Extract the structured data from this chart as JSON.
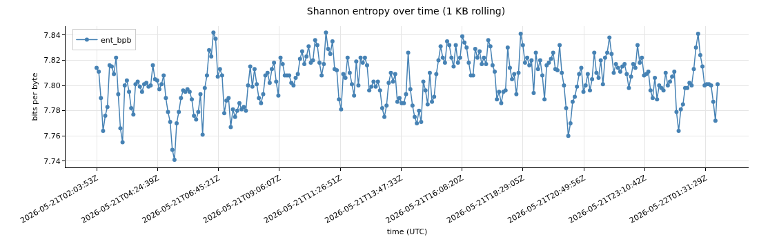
{
  "chart_data": {
    "type": "line",
    "title": "Shannon entropy over time (1 KB rolling)",
    "xlabel": "time (UTC)",
    "ylabel": "bits per byte",
    "x": [
      "2026-05-21T02:03:53",
      "2026-05-21T02:08:53",
      "2026-05-21T02:13:53",
      "2026-05-21T02:18:53",
      "2026-05-21T02:23:53",
      "2026-05-21T02:28:53",
      "2026-05-21T02:33:53",
      "2026-05-21T02:38:53",
      "2026-05-21T02:43:53",
      "2026-05-21T02:48:53",
      "2026-05-21T02:53:53",
      "2026-05-21T02:58:53",
      "2026-05-21T03:03:53",
      "2026-05-21T03:08:53",
      "2026-05-21T03:13:53",
      "2026-05-21T03:18:53",
      "2026-05-21T03:23:53",
      "2026-05-21T03:28:53",
      "2026-05-21T03:33:53",
      "2026-05-21T03:38:53",
      "2026-05-21T03:43:53",
      "2026-05-21T03:48:53",
      "2026-05-21T03:53:53",
      "2026-05-21T03:58:53",
      "2026-05-21T04:03:53",
      "2026-05-21T04:08:53",
      "2026-05-21T04:13:53",
      "2026-05-21T04:18:53",
      "2026-05-21T04:23:53",
      "2026-05-21T04:28:53",
      "2026-05-21T04:33:53",
      "2026-05-21T04:38:53",
      "2026-05-21T04:43:53",
      "2026-05-21T04:48:53",
      "2026-05-21T04:53:53",
      "2026-05-21T04:58:53",
      "2026-05-21T05:03:53",
      "2026-05-21T05:08:53",
      "2026-05-21T05:13:53",
      "2026-05-21T05:18:53",
      "2026-05-21T05:23:53",
      "2026-05-21T05:28:53",
      "2026-05-21T05:33:53",
      "2026-05-21T05:38:53",
      "2026-05-21T05:43:53",
      "2026-05-21T05:48:53",
      "2026-05-21T05:53:53",
      "2026-05-21T05:58:53",
      "2026-05-21T06:03:53",
      "2026-05-21T06:08:53",
      "2026-05-21T06:13:53",
      "2026-05-21T06:18:53",
      "2026-05-21T06:23:53",
      "2026-05-21T06:28:53",
      "2026-05-21T06:33:53",
      "2026-05-21T06:38:53",
      "2026-05-21T06:43:53",
      "2026-05-21T06:48:53",
      "2026-05-21T06:53:53",
      "2026-05-21T06:58:53",
      "2026-05-21T07:03:53",
      "2026-05-21T07:08:53",
      "2026-05-21T07:13:53",
      "2026-05-21T07:18:53",
      "2026-05-21T07:23:53",
      "2026-05-21T07:28:53",
      "2026-05-21T07:33:53",
      "2026-05-21T07:38:53",
      "2026-05-21T07:43:53",
      "2026-05-21T07:48:53",
      "2026-05-21T07:53:53",
      "2026-05-21T07:58:53",
      "2026-05-21T08:03:53",
      "2026-05-21T08:08:53",
      "2026-05-21T08:13:53",
      "2026-05-21T08:18:53",
      "2026-05-21T08:23:53",
      "2026-05-21T08:28:53",
      "2026-05-21T08:33:53",
      "2026-05-21T08:38:53",
      "2026-05-21T08:43:53",
      "2026-05-21T08:48:53",
      "2026-05-21T08:53:53",
      "2026-05-21T08:58:53",
      "2026-05-21T09:03:53",
      "2026-05-21T09:08:53",
      "2026-05-21T09:13:53",
      "2026-05-21T09:18:53",
      "2026-05-21T09:23:53",
      "2026-05-21T09:28:53",
      "2026-05-21T09:33:53",
      "2026-05-21T09:38:53",
      "2026-05-21T09:43:53",
      "2026-05-21T09:48:53",
      "2026-05-21T09:53:53",
      "2026-05-21T09:58:53",
      "2026-05-21T10:03:53",
      "2026-05-21T10:08:53",
      "2026-05-21T10:13:53",
      "2026-05-21T10:18:53",
      "2026-05-21T10:23:53",
      "2026-05-21T10:28:53",
      "2026-05-21T10:33:53",
      "2026-05-21T10:38:53",
      "2026-05-21T10:43:53",
      "2026-05-21T10:48:53",
      "2026-05-21T10:53:53",
      "2026-05-21T10:58:53",
      "2026-05-21T11:03:53",
      "2026-05-21T11:08:53",
      "2026-05-21T11:13:53",
      "2026-05-21T11:18:53",
      "2026-05-21T11:23:53",
      "2026-05-21T11:28:53",
      "2026-05-21T11:33:53",
      "2026-05-21T11:38:53",
      "2026-05-21T11:43:53",
      "2026-05-21T11:48:53",
      "2026-05-21T11:53:53",
      "2026-05-21T11:58:53",
      "2026-05-21T12:03:53",
      "2026-05-21T12:08:53",
      "2026-05-21T12:13:53",
      "2026-05-21T12:18:53",
      "2026-05-21T12:23:53",
      "2026-05-21T12:28:53",
      "2026-05-21T12:33:53",
      "2026-05-21T12:38:53",
      "2026-05-21T12:43:53",
      "2026-05-21T12:48:53",
      "2026-05-21T12:53:53",
      "2026-05-21T12:58:53",
      "2026-05-21T13:03:53",
      "2026-05-21T13:08:53",
      "2026-05-21T13:13:53",
      "2026-05-21T13:18:53",
      "2026-05-21T13:23:53",
      "2026-05-21T13:28:53",
      "2026-05-21T13:33:53",
      "2026-05-21T13:38:53",
      "2026-05-21T13:43:53",
      "2026-05-21T13:48:53",
      "2026-05-21T13:53:53",
      "2026-05-21T13:58:53",
      "2026-05-21T14:03:53",
      "2026-05-21T14:08:53",
      "2026-05-21T14:13:53",
      "2026-05-21T14:18:53",
      "2026-05-21T14:23:53",
      "2026-05-21T14:28:53",
      "2026-05-21T14:33:53",
      "2026-05-21T14:38:53",
      "2026-05-21T14:43:53",
      "2026-05-21T14:48:53",
      "2026-05-21T14:53:53",
      "2026-05-21T14:58:53",
      "2026-05-21T15:03:53",
      "2026-05-21T15:08:53",
      "2026-05-21T15:13:53",
      "2026-05-21T15:18:53",
      "2026-05-21T15:23:53",
      "2026-05-21T15:28:53",
      "2026-05-21T15:33:53",
      "2026-05-21T15:38:53",
      "2026-05-21T15:43:53",
      "2026-05-21T15:48:53",
      "2026-05-21T15:53:53",
      "2026-05-21T15:58:53",
      "2026-05-21T16:03:53",
      "2026-05-21T16:08:53",
      "2026-05-21T16:13:53",
      "2026-05-21T16:18:53",
      "2026-05-21T16:23:53",
      "2026-05-21T16:28:53",
      "2026-05-21T16:33:53",
      "2026-05-21T16:38:53",
      "2026-05-21T16:43:53",
      "2026-05-21T16:48:53",
      "2026-05-21T16:53:53",
      "2026-05-21T16:58:53",
      "2026-05-21T17:03:53",
      "2026-05-21T17:08:53",
      "2026-05-21T17:13:53",
      "2026-05-21T17:18:53",
      "2026-05-21T17:23:53",
      "2026-05-21T17:28:53",
      "2026-05-21T17:33:53",
      "2026-05-21T17:38:53",
      "2026-05-21T17:43:53",
      "2026-05-21T17:48:53",
      "2026-05-21T17:53:53",
      "2026-05-21T17:58:53",
      "2026-05-21T18:03:53",
      "2026-05-21T18:08:53",
      "2026-05-21T18:13:53",
      "2026-05-21T18:18:53",
      "2026-05-21T18:23:53",
      "2026-05-21T18:28:53",
      "2026-05-21T18:33:53",
      "2026-05-21T18:38:53",
      "2026-05-21T18:43:53",
      "2026-05-21T18:48:53",
      "2026-05-21T18:53:53",
      "2026-05-21T18:58:53",
      "2026-05-21T19:03:53",
      "2026-05-21T19:08:53",
      "2026-05-21T19:13:53",
      "2026-05-21T19:18:53",
      "2026-05-21T19:23:53",
      "2026-05-21T19:28:53",
      "2026-05-21T19:33:53",
      "2026-05-21T19:38:53",
      "2026-05-21T19:43:53",
      "2026-05-21T19:48:53",
      "2026-05-21T19:53:53",
      "2026-05-21T19:58:53",
      "2026-05-21T20:03:53",
      "2026-05-21T20:08:53",
      "2026-05-21T20:13:53",
      "2026-05-21T20:18:53",
      "2026-05-21T20:23:53",
      "2026-05-21T20:28:53",
      "2026-05-21T20:33:53",
      "2026-05-21T20:38:53",
      "2026-05-21T20:43:53",
      "2026-05-21T20:48:53",
      "2026-05-21T20:53:53",
      "2026-05-21T20:58:53",
      "2026-05-21T21:03:53",
      "2026-05-21T21:08:53",
      "2026-05-21T21:13:53",
      "2026-05-21T21:18:53",
      "2026-05-21T21:23:53",
      "2026-05-21T21:28:53",
      "2026-05-21T21:33:53",
      "2026-05-21T21:38:53",
      "2026-05-21T21:43:53",
      "2026-05-21T21:48:53",
      "2026-05-21T21:53:53",
      "2026-05-21T21:58:53",
      "2026-05-21T22:03:53",
      "2026-05-21T22:08:53",
      "2026-05-21T22:13:53",
      "2026-05-21T22:18:53",
      "2026-05-21T22:23:53",
      "2026-05-21T22:28:53",
      "2026-05-21T22:33:53",
      "2026-05-21T22:38:53",
      "2026-05-21T22:43:53",
      "2026-05-21T22:48:53",
      "2026-05-21T22:53:53",
      "2026-05-21T22:58:53",
      "2026-05-21T23:03:53",
      "2026-05-21T23:08:53",
      "2026-05-21T23:13:53",
      "2026-05-21T23:18:53",
      "2026-05-21T23:23:53",
      "2026-05-21T23:28:53",
      "2026-05-21T23:33:53",
      "2026-05-21T23:38:53",
      "2026-05-21T23:43:53",
      "2026-05-21T23:48:53",
      "2026-05-21T23:53:53",
      "2026-05-21T23:58:53",
      "2026-05-22T00:03:53",
      "2026-05-22T00:08:53",
      "2026-05-22T00:13:53",
      "2026-05-22T00:18:53",
      "2026-05-22T00:23:53",
      "2026-05-22T00:28:53",
      "2026-05-22T00:33:53",
      "2026-05-22T00:38:53",
      "2026-05-22T00:43:53",
      "2026-05-22T00:48:53",
      "2026-05-22T00:53:53",
      "2026-05-22T00:58:53",
      "2026-05-22T01:03:53",
      "2026-05-22T01:08:53",
      "2026-05-22T01:13:53",
      "2026-05-22T01:18:53",
      "2026-05-22T01:23:53",
      "2026-05-22T01:28:53",
      "2026-05-22T01:33:53",
      "2026-05-22T01:38:53",
      "2026-05-22T01:43:53",
      "2026-05-22T01:48:53",
      "2026-05-22T01:53:53",
      "2026-05-22T01:58:53"
    ],
    "series": [
      {
        "name": "ent_bpb",
        "color": "#4682b4",
        "values": [
          7.814,
          7.811,
          7.79,
          7.764,
          7.776,
          7.783,
          7.816,
          7.815,
          7.809,
          7.822,
          7.793,
          7.766,
          7.755,
          7.8,
          7.804,
          7.795,
          7.782,
          7.777,
          7.801,
          7.803,
          7.799,
          7.795,
          7.801,
          7.802,
          7.799,
          7.8,
          7.816,
          7.805,
          7.804,
          7.797,
          7.801,
          7.808,
          7.79,
          7.779,
          7.771,
          7.749,
          7.741,
          7.77,
          7.779,
          7.79,
          7.796,
          7.795,
          7.797,
          7.795,
          7.789,
          7.776,
          7.773,
          7.779,
          7.793,
          7.761,
          7.798,
          7.808,
          7.828,
          7.823,
          7.842,
          7.837,
          7.807,
          7.813,
          7.808,
          7.778,
          7.788,
          7.79,
          7.767,
          7.781,
          7.775,
          7.78,
          7.786,
          7.781,
          7.783,
          7.78,
          7.8,
          7.815,
          7.799,
          7.813,
          7.801,
          7.79,
          7.786,
          7.793,
          7.808,
          7.81,
          7.802,
          7.813,
          7.818,
          7.803,
          7.792,
          7.822,
          7.817,
          7.808,
          7.808,
          7.808,
          7.802,
          7.8,
          7.806,
          7.809,
          7.821,
          7.827,
          7.817,
          7.823,
          7.831,
          7.818,
          7.82,
          7.836,
          7.832,
          7.818,
          7.808,
          7.817,
          7.842,
          7.829,
          7.825,
          7.835,
          7.813,
          7.812,
          7.789,
          7.781,
          7.809,
          7.806,
          7.822,
          7.81,
          7.801,
          7.792,
          7.819,
          7.8,
          7.822,
          7.818,
          7.822,
          7.816,
          7.796,
          7.799,
          7.803,
          7.799,
          7.803,
          7.796,
          7.782,
          7.775,
          7.784,
          7.802,
          7.81,
          7.803,
          7.809,
          7.787,
          7.79,
          7.786,
          7.786,
          7.793,
          7.826,
          7.797,
          7.784,
          7.775,
          7.77,
          7.78,
          7.771,
          7.803,
          7.796,
          7.785,
          7.81,
          7.787,
          7.791,
          7.809,
          7.82,
          7.831,
          7.822,
          7.818,
          7.835,
          7.832,
          7.822,
          7.815,
          7.832,
          7.818,
          7.822,
          7.839,
          7.834,
          7.83,
          7.818,
          7.808,
          7.808,
          7.829,
          7.822,
          7.827,
          7.817,
          7.822,
          7.817,
          7.836,
          7.831,
          7.816,
          7.811,
          7.789,
          7.795,
          7.786,
          7.795,
          7.796,
          7.83,
          7.814,
          7.805,
          7.809,
          7.793,
          7.81,
          7.841,
          7.832,
          7.818,
          7.822,
          7.816,
          7.82,
          7.794,
          7.826,
          7.813,
          7.82,
          7.808,
          7.789,
          7.816,
          7.818,
          7.821,
          7.826,
          7.813,
          7.812,
          7.832,
          7.81,
          7.8,
          7.782,
          7.76,
          7.77,
          7.787,
          7.791,
          7.799,
          7.809,
          7.814,
          7.795,
          7.8,
          7.809,
          7.796,
          7.805,
          7.826,
          7.81,
          7.806,
          7.82,
          7.801,
          7.822,
          7.826,
          7.838,
          7.825,
          7.81,
          7.817,
          7.814,
          7.811,
          7.815,
          7.817,
          7.809,
          7.798,
          7.807,
          7.817,
          7.814,
          7.832,
          7.818,
          7.822,
          7.808,
          7.809,
          7.811,
          7.796,
          7.79,
          7.806,
          7.789,
          7.8,
          7.798,
          7.796,
          7.81,
          7.8,
          7.803,
          7.807,
          7.811,
          7.779,
          7.764,
          7.781,
          7.785,
          7.798,
          7.798,
          7.802,
          7.8,
          7.813,
          7.83,
          7.841,
          7.824,
          7.815,
          7.8,
          7.801,
          7.801,
          7.8,
          7.787,
          7.772,
          7.801
        ]
      }
    ],
    "xlim": [
      "2026-05-21T00:52:08",
      "2026-05-22T03:10:38"
    ],
    "ylim": [
      7.735,
      7.847
    ],
    "xticks": [
      {
        "value": "2026-05-21T02:03:53",
        "label": "2026-05-21T02:03:53Z"
      },
      {
        "value": "2026-05-21T04:24:39",
        "label": "2026-05-21T04:24:39Z"
      },
      {
        "value": "2026-05-21T06:45:21",
        "label": "2026-05-21T06:45:21Z"
      },
      {
        "value": "2026-05-21T09:06:07",
        "label": "2026-05-21T09:06:07Z"
      },
      {
        "value": "2026-05-21T11:26:51",
        "label": "2026-05-21T11:26:51Z"
      },
      {
        "value": "2026-05-21T13:47:33",
        "label": "2026-05-21T13:47:33Z"
      },
      {
        "value": "2026-05-21T16:08:20",
        "label": "2026-05-21T16:08:20Z"
      },
      {
        "value": "2026-05-21T18:29:05",
        "label": "2026-05-21T18:29:05Z"
      },
      {
        "value": "2026-05-21T20:49:56",
        "label": "2026-05-21T20:49:56Z"
      },
      {
        "value": "2026-05-21T23:10:42",
        "label": "2026-05-21T23:10:42Z"
      },
      {
        "value": "2026-05-22T01:31:29",
        "label": "2026-05-22T01:31:29Z"
      }
    ],
    "yticks": [
      7.74,
      7.76,
      7.78,
      {
        "value": 7.8,
        "label": "7.80"
      },
      7.82,
      7.84
    ],
    "grid": true,
    "legend": "top left",
    "marker": "circle",
    "line_style": "solid"
  }
}
